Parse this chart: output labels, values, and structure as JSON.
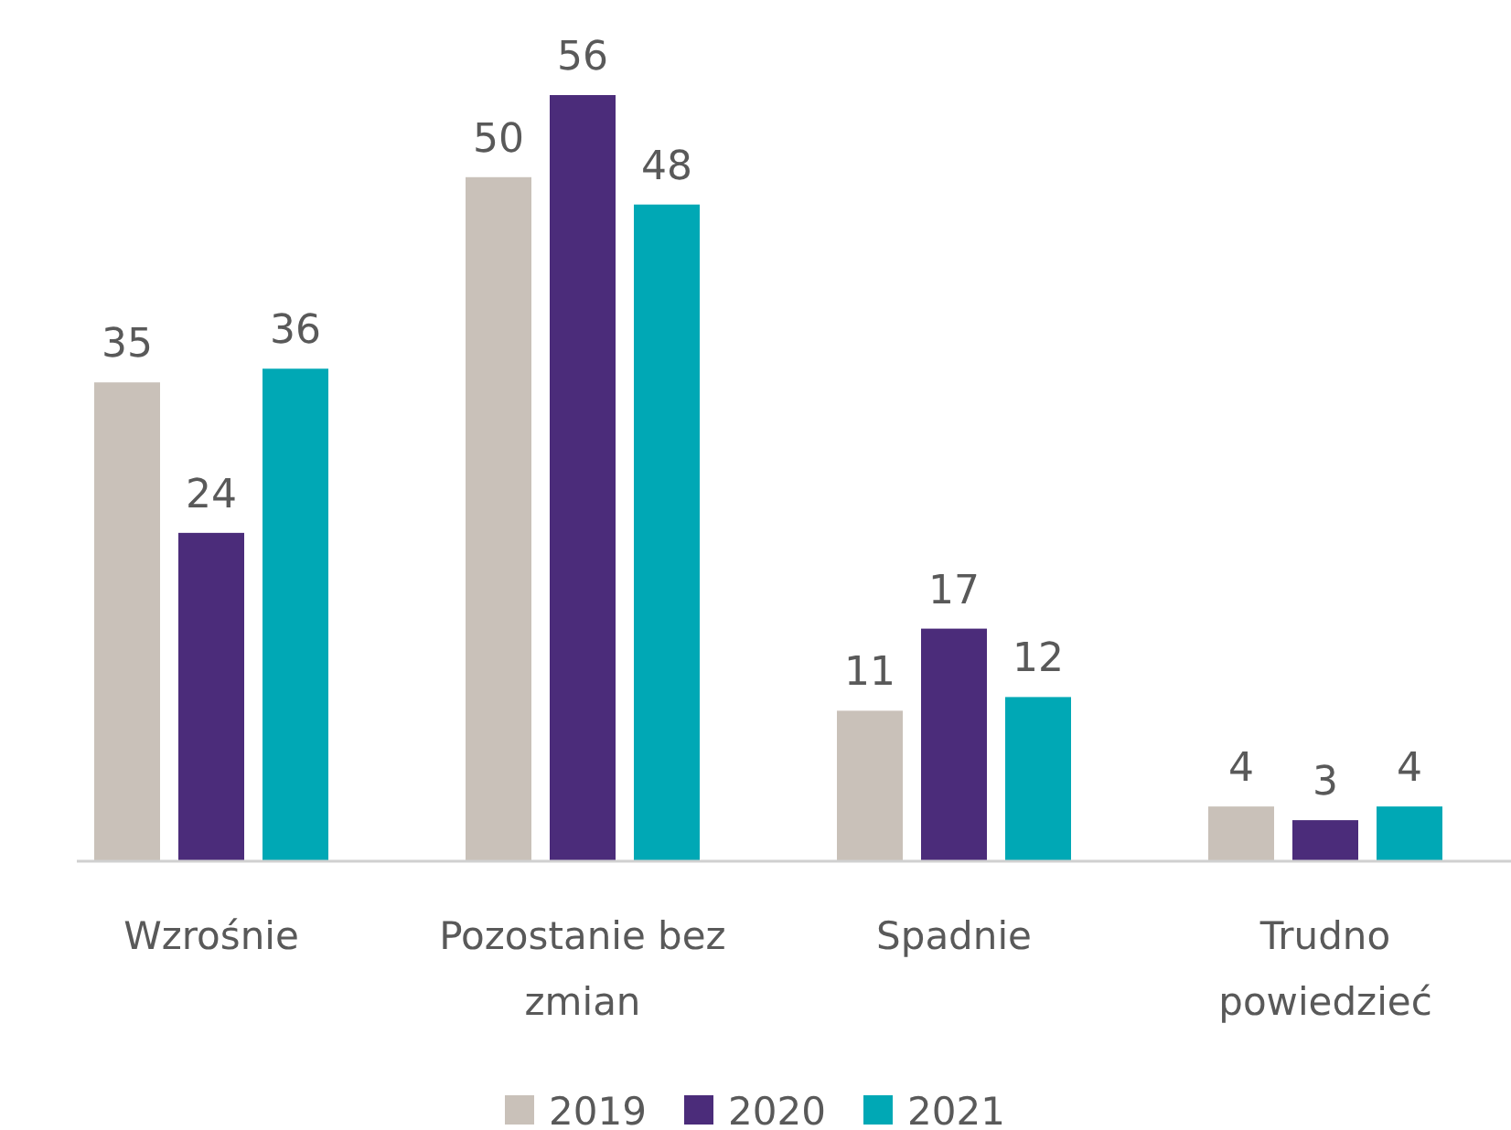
{
  "chart_data": {
    "type": "bar",
    "categories": [
      "Wzrośnie",
      "Pozostanie bez zmian",
      "Spadnie",
      "Trudno powiedzieć"
    ],
    "series": [
      {
        "name": "2019",
        "color": "#c9c1b9",
        "values": [
          35,
          50,
          11,
          4
        ]
      },
      {
        "name": "2020",
        "color": "#4b2c7a",
        "values": [
          24,
          56,
          17,
          3
        ]
      },
      {
        "name": "2021",
        "color": "#00a8b5",
        "values": [
          36,
          48,
          12,
          4
        ]
      }
    ],
    "data_labels": true,
    "legend": "bottom"
  }
}
